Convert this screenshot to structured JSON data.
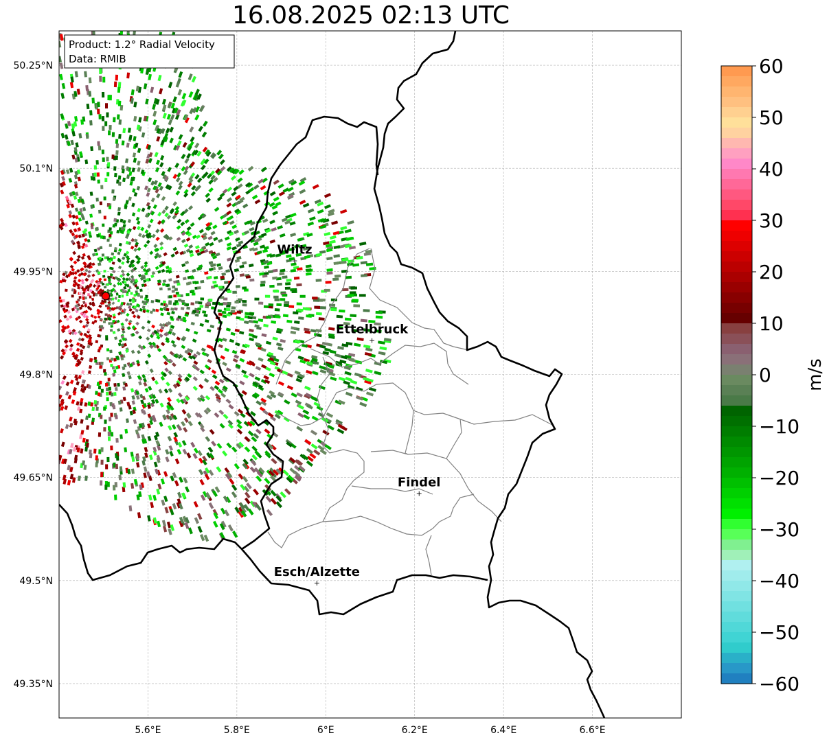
{
  "title": "16.08.2025 02:13 UTC",
  "info_box": {
    "product": "Product: 1.2° Radial Velocity",
    "data_source": "Data: RMIB"
  },
  "map": {
    "lon_range": [
      5.4,
      6.8
    ],
    "lat_range": [
      49.3,
      50.3
    ],
    "x_ticks": [
      {
        "value": 5.6,
        "label": "5.6°E"
      },
      {
        "value": 5.8,
        "label": "5.8°E"
      },
      {
        "value": 6.0,
        "label": "6°E"
      },
      {
        "value": 6.2,
        "label": "6.2°E"
      },
      {
        "value": 6.4,
        "label": "6.4°E"
      },
      {
        "value": 6.6,
        "label": "6.6°E"
      }
    ],
    "y_ticks": [
      {
        "value": 50.25,
        "label": "50.25°N"
      },
      {
        "value": 50.1,
        "label": "50.1°N"
      },
      {
        "value": 49.95,
        "label": "49.95°N"
      },
      {
        "value": 49.8,
        "label": "49.8°N"
      },
      {
        "value": 49.65,
        "label": "49.65°N"
      },
      {
        "value": 49.5,
        "label": "49.5°N"
      },
      {
        "value": 49.35,
        "label": "49.35°N"
      }
    ],
    "radar_site": {
      "lon": 5.505,
      "lat": 49.914,
      "color": "#ff0000"
    },
    "cities": [
      {
        "name": "Wiltz",
        "lon": 5.93,
        "lat": 49.966
      },
      {
        "name": "Ettelbruck",
        "lon": 6.104,
        "lat": 49.85
      },
      {
        "name": "Findel",
        "lon": 6.21,
        "lat": 49.627
      },
      {
        "name": "Esch/Alzette",
        "lon": 5.98,
        "lat": 49.497
      }
    ]
  },
  "colorbar": {
    "label": "m/s",
    "min": -60,
    "max": 60,
    "ticks": [
      {
        "value": 60,
        "label": "60"
      },
      {
        "value": 50,
        "label": "50"
      },
      {
        "value": 40,
        "label": "40"
      },
      {
        "value": 30,
        "label": "30"
      },
      {
        "value": 20,
        "label": "20"
      },
      {
        "value": 10,
        "label": "10"
      },
      {
        "value": 0,
        "label": "0"
      },
      {
        "value": -10,
        "label": "−10"
      },
      {
        "value": -20,
        "label": "−20"
      },
      {
        "value": -30,
        "label": "−30"
      },
      {
        "value": -40,
        "label": "−40"
      },
      {
        "value": -50,
        "label": "−50"
      },
      {
        "value": -60,
        "label": "−60"
      }
    ],
    "colors_top_to_bottom": [
      "#ff9a50",
      "#ffa860",
      "#ffb570",
      "#ffc080",
      "#ffd090",
      "#ffe09a",
      "#ffd2a0",
      "#ffb8b0",
      "#ffa0c0",
      "#ff88c8",
      "#ff78b0",
      "#ff6898",
      "#ff5880",
      "#ff4868",
      "#ff3050",
      "#ff0000",
      "#ee0000",
      "#dd0000",
      "#cc0000",
      "#bb0000",
      "#aa0000",
      "#990000",
      "#880000",
      "#770000",
      "#660000",
      "#884040",
      "#8a5058",
      "#8a6070",
      "#8a7078",
      "#7a8070",
      "#6a8a60",
      "#5a8055",
      "#4a7a48",
      "#006400",
      "#007000",
      "#007d00",
      "#008a00",
      "#009600",
      "#00a300",
      "#00b000",
      "#00c000",
      "#00d000",
      "#00e000",
      "#00f000",
      "#30ff30",
      "#58ff58",
      "#80f090",
      "#a0f0b8",
      "#b0f0f0",
      "#a0ecec",
      "#90e8e8",
      "#80e4e4",
      "#70e0e0",
      "#60dcdc",
      "#50d8d8",
      "#40d4d4",
      "#30cccc",
      "#2ab0c8",
      "#2898c8",
      "#2080c0"
    ]
  }
}
